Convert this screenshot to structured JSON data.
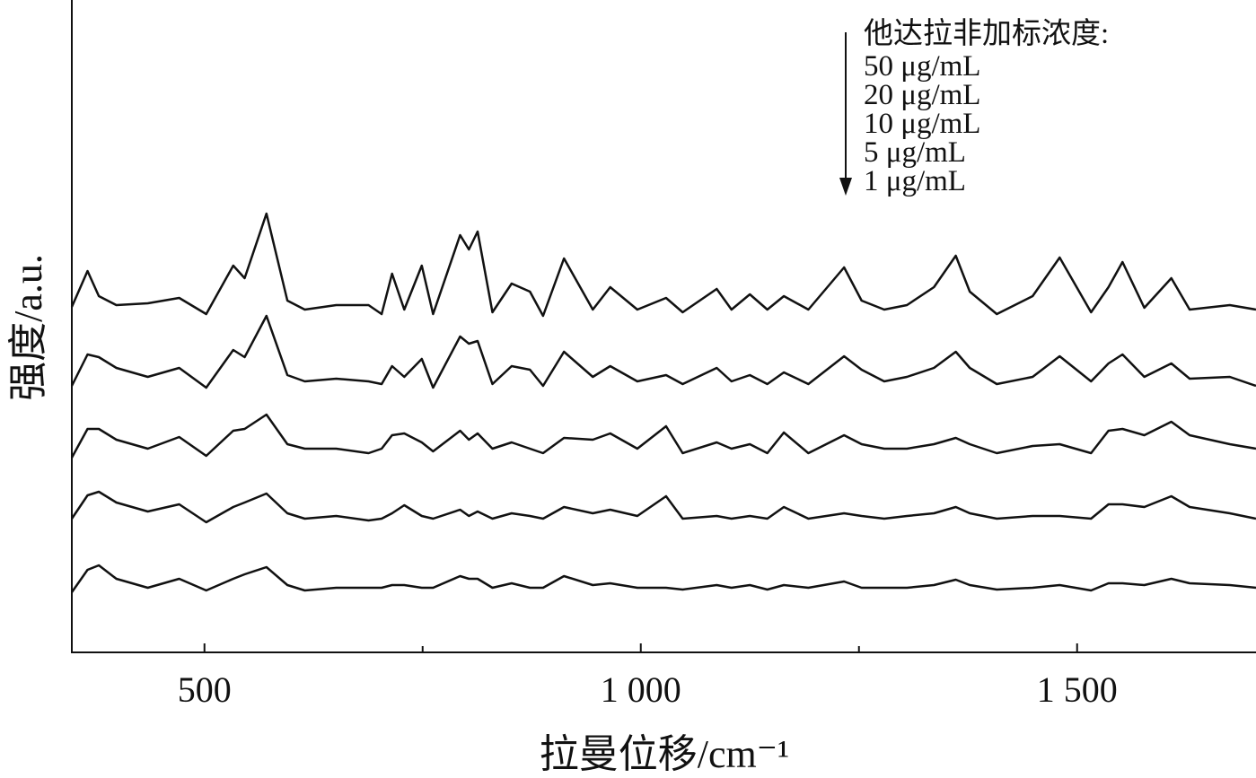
{
  "chart_data": {
    "type": "line",
    "x_label": "拉曼位移/cm⁻¹",
    "y_label": "强度/a.u.",
    "legend_title": "他达拉非加标浓度:",
    "legend": "top-right",
    "xlim": [
      348,
      1705
    ],
    "ylim": [
      0,
      727
    ],
    "xticks": [
      500,
      {
        "value": 1000,
        "label": "1 000"
      },
      {
        "value": 1500,
        "label": "1 500"
      }
    ],
    "xminorticks": [
      750,
      1250
    ],
    "x": [
      348,
      366,
      379,
      399,
      435,
      471,
      502,
      533,
      546,
      571,
      595,
      615,
      651,
      688,
      703,
      715,
      729,
      749,
      762,
      793,
      803,
      813,
      830,
      852,
      873,
      888,
      912,
      945,
      965,
      996,
      1029,
      1048,
      1087,
      1104,
      1125,
      1145,
      1164,
      1192,
      1233,
      1253,
      1279,
      1305,
      1336,
      1361,
      1377,
      1408,
      1449,
      1480,
      1516,
      1536,
      1552,
      1577,
      1608,
      1629,
      1675,
      1705
    ],
    "series": [
      {
        "name": "50 μg/mL",
        "color": "#111111",
        "values": [
          385,
          425,
          397,
          387,
          389,
          395,
          377,
          431,
          417,
          489,
          392,
          382,
          387,
          387,
          377,
          422,
          382,
          431,
          377,
          465,
          449,
          469,
          379,
          411,
          402,
          375,
          439,
          382,
          407,
          382,
          395,
          379,
          405,
          382,
          399,
          382,
          397,
          382,
          429,
          392,
          382,
          387,
          407,
          442,
          402,
          377,
          397,
          440,
          379,
          407,
          435,
          384,
          417,
          382,
          387,
          382
        ]
      },
      {
        "name": "20 μg/mL",
        "color": "#111111",
        "values": [
          297,
          332,
          329,
          317,
          307,
          317,
          295,
          337,
          329,
          375,
          309,
          302,
          305,
          302,
          299,
          319,
          307,
          327,
          295,
          352,
          344,
          347,
          299,
          319,
          315,
          297,
          335,
          307,
          319,
          302,
          309,
          299,
          317,
          302,
          309,
          299,
          312,
          299,
          330,
          315,
          302,
          307,
          317,
          335,
          317,
          299,
          307,
          330,
          302,
          322,
          332,
          307,
          322,
          305,
          307,
          297
        ]
      },
      {
        "name": "10 μg/mL",
        "color": "#111111",
        "values": [
          217,
          249,
          249,
          237,
          227,
          240,
          219,
          247,
          249,
          265,
          232,
          227,
          227,
          222,
          227,
          242,
          244,
          234,
          224,
          247,
          237,
          244,
          227,
          234,
          227,
          222,
          239,
          237,
          244,
          227,
          252,
          222,
          234,
          227,
          232,
          222,
          245,
          222,
          242,
          232,
          227,
          227,
          232,
          239,
          232,
          222,
          230,
          232,
          222,
          247,
          249,
          242,
          257,
          242,
          232,
          227
        ]
      },
      {
        "name": "5 μg/mL",
        "color": "#111111",
        "values": [
          149,
          175,
          179,
          167,
          157,
          165,
          145,
          162,
          167,
          177,
          155,
          149,
          152,
          147,
          149,
          155,
          164,
          152,
          149,
          159,
          152,
          157,
          149,
          155,
          152,
          149,
          162,
          155,
          159,
          152,
          174,
          149,
          152,
          149,
          152,
          149,
          162,
          149,
          155,
          152,
          149,
          152,
          155,
          162,
          155,
          149,
          152,
          152,
          149,
          165,
          165,
          162,
          174,
          162,
          155,
          149
        ]
      },
      {
        "name": "1 μg/mL",
        "color": "#111111",
        "values": [
          67,
          92,
          97,
          82,
          72,
          82,
          69,
          82,
          87,
          95,
          75,
          69,
          72,
          72,
          72,
          75,
          75,
          72,
          72,
          85,
          82,
          82,
          72,
          77,
          72,
          72,
          85,
          75,
          77,
          72,
          72,
          70,
          75,
          72,
          75,
          70,
          75,
          72,
          79,
          72,
          72,
          72,
          75,
          81,
          75,
          70,
          72,
          75,
          69,
          77,
          77,
          75,
          82,
          77,
          75,
          72
        ]
      }
    ]
  }
}
